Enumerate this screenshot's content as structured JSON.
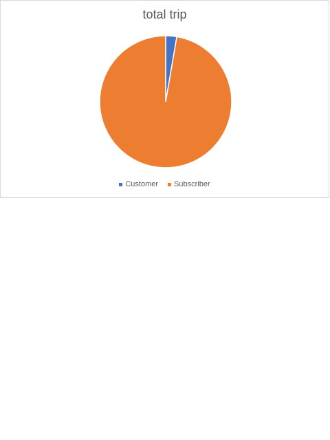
{
  "chart_data": {
    "type": "pie",
    "title": "total trip",
    "categories": [
      "Customer",
      "Subscriber"
    ],
    "values": [
      2.7,
      97.3
    ],
    "colors": [
      "#4472C4",
      "#ED7D31"
    ],
    "legend_position": "bottom"
  }
}
